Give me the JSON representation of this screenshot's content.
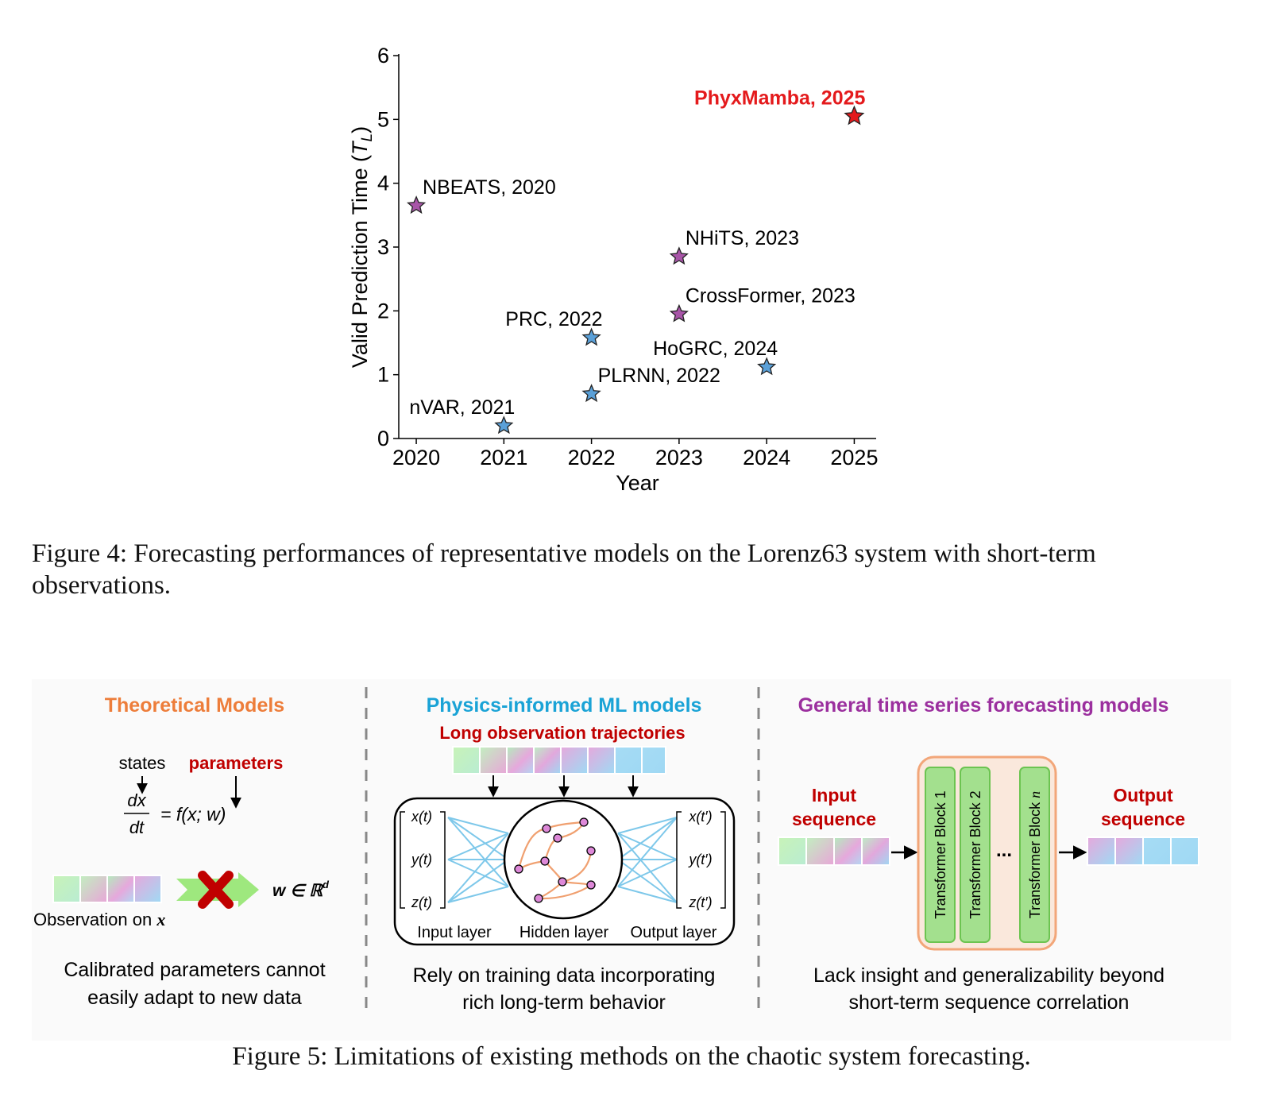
{
  "figure4": {
    "caption": "Figure 4: Forecasting performances of representative models on the Lorenz63 system with short-term observations.",
    "caption_line1": "Figure 4: Forecasting performances of representative models on the Lorenz63 system with short-term",
    "caption_line2": "observations."
  },
  "chart_data": {
    "type": "scatter",
    "xlabel": "Year",
    "ylabel": "Valid Prediction Time (T_L)",
    "ylabel_main": "Valid Prediction Time (",
    "ylabel_sym": "T",
    "ylabel_sub": "L",
    "ylabel_close": ")",
    "xlim": [
      2019.8,
      2025.25
    ],
    "ylim": [
      0,
      6
    ],
    "xticks": [
      2020,
      2021,
      2022,
      2023,
      2024,
      2025
    ],
    "xtick_labels": [
      "2020",
      "2021",
      "2022",
      "2023",
      "2024",
      "2025"
    ],
    "yticks": [
      0,
      1,
      2,
      3,
      4,
      5,
      6
    ],
    "ytick_labels": [
      "0",
      "1",
      "2",
      "3",
      "4",
      "5",
      "6"
    ],
    "grid": false,
    "points": [
      {
        "label": "NBEATS, 2020",
        "x": 2020,
        "y": 3.65,
        "color": "#a855a8",
        "label_pos": "upper-right"
      },
      {
        "label": "nVAR, 2021",
        "x": 2021,
        "y": 0.2,
        "color": "#5aa0d8",
        "label_pos": "upper-left"
      },
      {
        "label": "PRC, 2022",
        "x": 2022,
        "y": 1.58,
        "color": "#5aa0d8",
        "label_pos": "upper-left"
      },
      {
        "label": "PLRNN, 2022",
        "x": 2022,
        "y": 0.7,
        "color": "#5aa0d8",
        "label_pos": "upper-right"
      },
      {
        "label": "NHiTS, 2023",
        "x": 2023,
        "y": 2.85,
        "color": "#a855a8",
        "label_pos": "upper-right"
      },
      {
        "label": "CrossFormer, 2023",
        "x": 2023,
        "y": 1.95,
        "color": "#a855a8",
        "label_pos": "upper-right"
      },
      {
        "label": "HoGRC, 2024",
        "x": 2024,
        "y": 1.12,
        "color": "#5aa0d8",
        "label_pos": "upper-left"
      },
      {
        "label": "PhyxMamba, 2025",
        "x": 2025,
        "y": 5.05,
        "color": "#e41a1c",
        "label_pos": "upper-left",
        "highlight": true
      }
    ]
  },
  "figure5": {
    "caption": "Figure 5: Limitations of existing methods on the chaotic system forecasting.",
    "panel1": {
      "title": "Theoretical Models",
      "title_color": "#ed7d3a",
      "states_label": "states",
      "params_label": "parameters",
      "eq_lhs_num": "dx",
      "eq_lhs_den": "dt",
      "eq_rhs": "= f(x; w)",
      "w_label": "w ∈ ℝ",
      "w_sup": "d",
      "obs_label": "Observation on ",
      "obs_var": "x",
      "limitation_line1": "Calibrated parameters cannot",
      "limitation_line2": "easily adapt to new data"
    },
    "panel2": {
      "title": "Physics-informed ML models",
      "title_color": "#1aa3d6",
      "subtitle": "Long observation trajectories",
      "in_x": "x(t)",
      "in_y": "y(t)",
      "in_z": "z(t)",
      "out_x": "x(t′)",
      "out_y": "y(t′)",
      "out_z": "z(t′)",
      "input_layer": "Input layer",
      "hidden_layer": "Hidden layer",
      "output_layer": "Output layer",
      "limitation_line1": "Rely on training data incorporating",
      "limitation_line2": "rich long-term behavior"
    },
    "panel3": {
      "title": "General time series forecasting models",
      "title_color": "#9b2f9e",
      "input_label_1": "Input",
      "input_label_2": "sequence",
      "output_label_1": "Output",
      "output_label_2": "sequence",
      "block1": "Transformer Block 1",
      "block2": "Transformer Block 2",
      "blockn": "Transformer Block ",
      "blockn_var": "n",
      "ellipsis": "...",
      "limitation_line1": "Lack insight and generalizability beyond",
      "limitation_line2": "short-term sequence correlation"
    },
    "accent_red": "#c00000"
  }
}
